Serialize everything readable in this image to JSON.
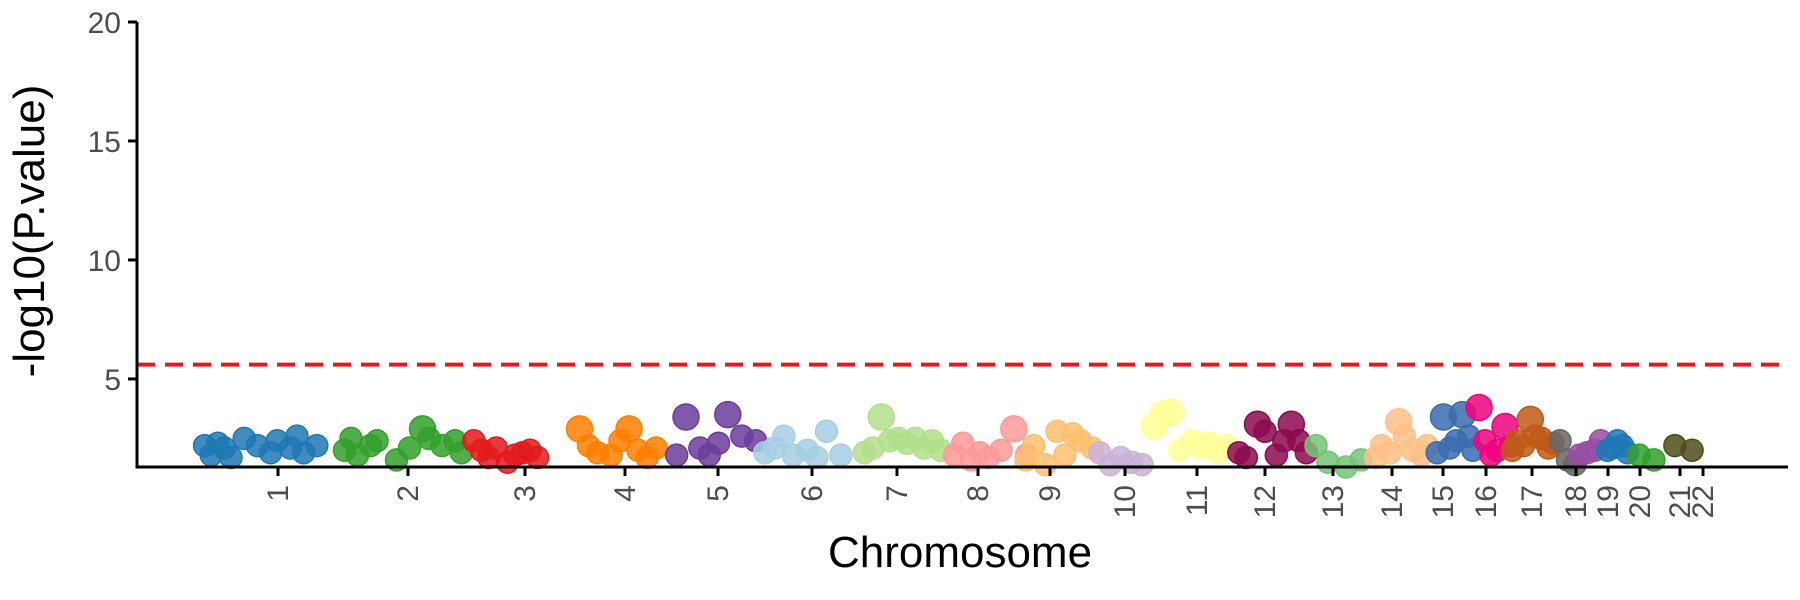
{
  "chart_data": {
    "type": "scatter",
    "title": "",
    "xlabel": "Chromosome",
    "ylabel": "-log10(P.value)",
    "ylim": [
      1.3,
      20
    ],
    "yticks": [
      5,
      10,
      15,
      20
    ],
    "grid": false,
    "legend": "none",
    "threshold": {
      "value": 5.6,
      "color": "#e41a1c",
      "style": "dashed"
    },
    "chromosomes": [
      {
        "label": "1",
        "color": "#1f78b4",
        "points": [
          [
            0.05,
            2.2
          ],
          [
            0.1,
            1.8
          ],
          [
            0.15,
            2.3
          ],
          [
            0.2,
            2.1
          ],
          [
            0.25,
            1.7
          ],
          [
            0.35,
            2.5
          ],
          [
            0.45,
            2.2
          ],
          [
            0.55,
            1.9
          ],
          [
            0.6,
            2.4
          ],
          [
            0.7,
            2.1
          ],
          [
            0.75,
            2.6
          ],
          [
            0.8,
            1.9
          ],
          [
            0.9,
            2.2
          ]
        ]
      },
      {
        "label": "2",
        "color": "#33a02c",
        "points": [
          [
            0.05,
            2.0
          ],
          [
            0.1,
            2.5
          ],
          [
            0.15,
            1.8
          ],
          [
            0.25,
            2.2
          ],
          [
            0.3,
            2.4
          ],
          [
            0.45,
            1.6
          ],
          [
            0.55,
            2.1
          ],
          [
            0.65,
            2.9
          ],
          [
            0.7,
            2.5
          ],
          [
            0.8,
            2.2
          ],
          [
            0.9,
            2.4
          ],
          [
            0.95,
            1.9
          ]
        ]
      },
      {
        "label": "3",
        "color": "#e31a1c",
        "points": [
          [
            0.05,
            2.4
          ],
          [
            0.15,
            2.0
          ],
          [
            0.25,
            1.7
          ],
          [
            0.35,
            2.1
          ],
          [
            0.5,
            1.5
          ],
          [
            0.6,
            1.8
          ],
          [
            0.7,
            1.9
          ],
          [
            0.8,
            2.0
          ],
          [
            0.9,
            1.7
          ]
        ]
      },
      {
        "label": "4",
        "color": "#ff7f00",
        "points": [
          [
            0.05,
            2.9
          ],
          [
            0.15,
            2.2
          ],
          [
            0.25,
            1.9
          ],
          [
            0.4,
            1.8
          ],
          [
            0.5,
            2.4
          ],
          [
            0.6,
            2.9
          ],
          [
            0.7,
            2.0
          ],
          [
            0.8,
            1.7
          ],
          [
            0.9,
            2.1
          ]
        ]
      },
      {
        "label": "5",
        "color": "#6a3d9a",
        "points": [
          [
            0.05,
            1.8
          ],
          [
            0.15,
            3.4
          ],
          [
            0.3,
            2.1
          ],
          [
            0.4,
            1.8
          ],
          [
            0.5,
            2.3
          ],
          [
            0.6,
            3.5
          ],
          [
            0.75,
            2.6
          ],
          [
            0.9,
            2.4
          ]
        ]
      },
      {
        "label": "6",
        "color": "#a6cee3",
        "points": [
          [
            0.05,
            1.9
          ],
          [
            0.15,
            2.1
          ],
          [
            0.25,
            2.6
          ],
          [
            0.35,
            1.8
          ],
          [
            0.5,
            2.0
          ],
          [
            0.6,
            1.7
          ],
          [
            0.7,
            2.8
          ],
          [
            0.85,
            1.8
          ]
        ]
      },
      {
        "label": "7",
        "color": "#b2df8a",
        "points": [
          [
            0.05,
            1.9
          ],
          [
            0.15,
            2.1
          ],
          [
            0.25,
            3.4
          ],
          [
            0.35,
            2.4
          ],
          [
            0.45,
            2.5
          ],
          [
            0.55,
            2.3
          ],
          [
            0.65,
            2.5
          ],
          [
            0.75,
            2.1
          ],
          [
            0.85,
            2.4
          ],
          [
            0.95,
            2.0
          ]
        ]
      },
      {
        "label": "8",
        "color": "#fb9a99",
        "points": [
          [
            0.05,
            1.8
          ],
          [
            0.15,
            2.3
          ],
          [
            0.25,
            1.6
          ],
          [
            0.35,
            1.9
          ],
          [
            0.45,
            1.7
          ],
          [
            0.6,
            2.0
          ],
          [
            0.75,
            2.9
          ],
          [
            0.9,
            1.8
          ]
        ]
      },
      {
        "label": "9",
        "color": "#fdbf6f",
        "points": [
          [
            0.05,
            1.6
          ],
          [
            0.15,
            2.2
          ],
          [
            0.3,
            1.4
          ],
          [
            0.45,
            2.8
          ],
          [
            0.55,
            1.8
          ],
          [
            0.65,
            2.7
          ],
          [
            0.75,
            2.4
          ],
          [
            0.9,
            2.1
          ]
        ]
      },
      {
        "label": "10",
        "color": "#cab2d6",
        "points": [
          [
            0.05,
            1.9
          ],
          [
            0.25,
            1.4
          ],
          [
            0.45,
            1.7
          ],
          [
            0.65,
            1.5
          ],
          [
            0.85,
            1.4
          ]
        ]
      },
      {
        "label": "11",
        "color": "#ffff99",
        "points": [
          [
            0.05,
            3.0
          ],
          [
            0.15,
            3.5
          ],
          [
            0.25,
            3.6
          ],
          [
            0.35,
            2.0
          ],
          [
            0.5,
            2.4
          ],
          [
            0.6,
            2.1
          ],
          [
            0.7,
            2.3
          ],
          [
            0.8,
            1.9
          ],
          [
            0.9,
            2.2
          ]
        ]
      },
      {
        "label": "12",
        "color": "#8b0a50",
        "points": [
          [
            0.05,
            1.9
          ],
          [
            0.15,
            1.7
          ],
          [
            0.3,
            3.1
          ],
          [
            0.4,
            2.8
          ],
          [
            0.55,
            1.8
          ],
          [
            0.65,
            2.4
          ],
          [
            0.75,
            3.1
          ],
          [
            0.85,
            2.4
          ],
          [
            0.95,
            1.9
          ]
        ]
      },
      {
        "label": "13",
        "color": "#74c476",
        "points": [
          [
            0.1,
            2.2
          ],
          [
            0.3,
            1.5
          ],
          [
            0.6,
            1.3
          ],
          [
            0.85,
            1.6
          ]
        ]
      },
      {
        "label": "14",
        "color": "#fdc086",
        "points": [
          [
            0.05,
            1.7
          ],
          [
            0.15,
            2.2
          ],
          [
            0.3,
            1.9
          ],
          [
            0.45,
            3.2
          ],
          [
            0.55,
            2.6
          ],
          [
            0.7,
            2.0
          ],
          [
            0.85,
            1.8
          ],
          [
            0.95,
            2.2
          ]
        ]
      },
      {
        "label": "15",
        "color": "#386cb0",
        "points": [
          [
            0.1,
            1.9
          ],
          [
            0.25,
            3.4
          ],
          [
            0.4,
            2.1
          ],
          [
            0.55,
            2.4
          ],
          [
            0.7,
            3.5
          ],
          [
            0.85,
            2.6
          ],
          [
            0.95,
            2.0
          ]
        ]
      },
      {
        "label": "16",
        "color": "#f0027f",
        "points": [
          [
            0.1,
            3.8
          ],
          [
            0.25,
            2.4
          ],
          [
            0.4,
            1.8
          ],
          [
            0.55,
            2.0
          ],
          [
            0.75,
            3.0
          ],
          [
            0.9,
            2.2
          ]
        ]
      },
      {
        "label": "17",
        "color": "#bf5b17",
        "points": [
          [
            0.05,
            2.0
          ],
          [
            0.15,
            2.4
          ],
          [
            0.3,
            2.2
          ],
          [
            0.45,
            3.3
          ],
          [
            0.55,
            2.6
          ],
          [
            0.7,
            2.5
          ],
          [
            0.85,
            2.1
          ],
          [
            0.95,
            2.3
          ]
        ]
      },
      {
        "label": "18",
        "color": "#666666",
        "points": [
          [
            0.2,
            2.4
          ],
          [
            0.5,
            1.6
          ],
          [
            0.8,
            1.4
          ]
        ]
      },
      {
        "label": "19",
        "color": "#984ea3",
        "points": [
          [
            0.15,
            1.8
          ],
          [
            0.4,
            1.9
          ],
          [
            0.65,
            2.0
          ],
          [
            0.85,
            2.4
          ]
        ]
      },
      {
        "label": "20",
        "color": "#1f78b4",
        "points": [
          [
            0.1,
            2.0
          ],
          [
            0.3,
            2.1
          ],
          [
            0.5,
            2.4
          ],
          [
            0.7,
            2.2
          ],
          [
            0.9,
            1.9
          ]
        ]
      },
      {
        "label": "21",
        "color": "#33a02c",
        "points": [
          [
            0.3,
            1.8
          ],
          [
            0.7,
            1.6
          ]
        ]
      },
      {
        "label": "22",
        "color": "#4d4d1a",
        "points": [
          [
            0.3,
            2.2
          ],
          [
            0.7,
            2.0
          ]
        ]
      }
    ]
  }
}
